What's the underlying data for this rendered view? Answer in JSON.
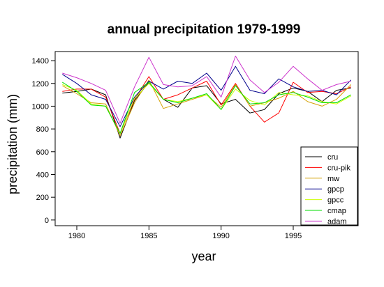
{
  "chart_data": {
    "type": "line",
    "title": "annual precipitation 1979-1999",
    "xlabel": "year",
    "ylabel": "precipitation (mm)",
    "xlim": [
      1978.5,
      1999.5
    ],
    "ylim": [
      -50,
      1480
    ],
    "x_ticks": [
      1980,
      1985,
      1990,
      1995
    ],
    "y_ticks": [
      0,
      200,
      400,
      600,
      800,
      1000,
      1200,
      1400
    ],
    "grid": false,
    "legend_position": "bottom-right",
    "x": [
      1979,
      1980,
      1981,
      1982,
      1983,
      1984,
      1985,
      1986,
      1987,
      1988,
      1989,
      1990,
      1991,
      1992,
      1993,
      1994,
      1995,
      1996,
      1997,
      1998,
      1999
    ],
    "series": [
      {
        "name": "cru",
        "color": "#000000",
        "values": [
          1115,
          1130,
          1150,
          1100,
          720,
          1050,
          1210,
          1060,
          990,
          1160,
          1180,
          1020,
          1060,
          940,
          970,
          1110,
          1160,
          1130,
          1040,
          1140,
          1160
        ]
      },
      {
        "name": "cru-pik",
        "color": "#ff0000",
        "values": [
          1130,
          1150,
          1150,
          1080,
          760,
          1060,
          1260,
          1060,
          1100,
          1160,
          1220,
          1010,
          1200,
          1000,
          860,
          940,
          1210,
          1120,
          1130,
          1110,
          1170
        ]
      },
      {
        "name": "mw",
        "color": "#d4a000",
        "values": [
          1180,
          1110,
          1030,
          1020,
          740,
          1030,
          1230,
          980,
          1020,
          1060,
          1100,
          990,
          1190,
          1000,
          1030,
          1070,
          1130,
          1040,
          1000,
          1060,
          1190
        ]
      },
      {
        "name": "gpcp",
        "color": "#00008b",
        "values": [
          1280,
          1200,
          1100,
          1060,
          820,
          1080,
          1220,
          1150,
          1220,
          1200,
          1290,
          1140,
          1350,
          1140,
          1110,
          1240,
          1170,
          1130,
          1140,
          1100,
          1230
        ]
      },
      {
        "name": "gpcc",
        "color": "#ccff00",
        "values": [
          1190,
          1140,
          1020,
          1000,
          760,
          1070,
          1200,
          1060,
          1040,
          1070,
          1100,
          970,
          1150,
          1050,
          1010,
          1120,
          1100,
          1090,
          1040,
          1020,
          1090
        ]
      },
      {
        "name": "cmap",
        "color": "#00dd00",
        "values": [
          1210,
          1130,
          1010,
          1000,
          760,
          1120,
          1210,
          1060,
          1030,
          1070,
          1110,
          970,
          1180,
          1020,
          1030,
          1100,
          1120,
          1080,
          1030,
          1030,
          1100
        ]
      },
      {
        "name": "adam",
        "color": "#cc33cc",
        "values": [
          1290,
          1250,
          1200,
          1140,
          850,
          1170,
          1430,
          1190,
          1170,
          1180,
          1260,
          1080,
          1440,
          1230,
          1120,
          1210,
          1350,
          1240,
          1140,
          1190,
          1220
        ]
      }
    ]
  }
}
